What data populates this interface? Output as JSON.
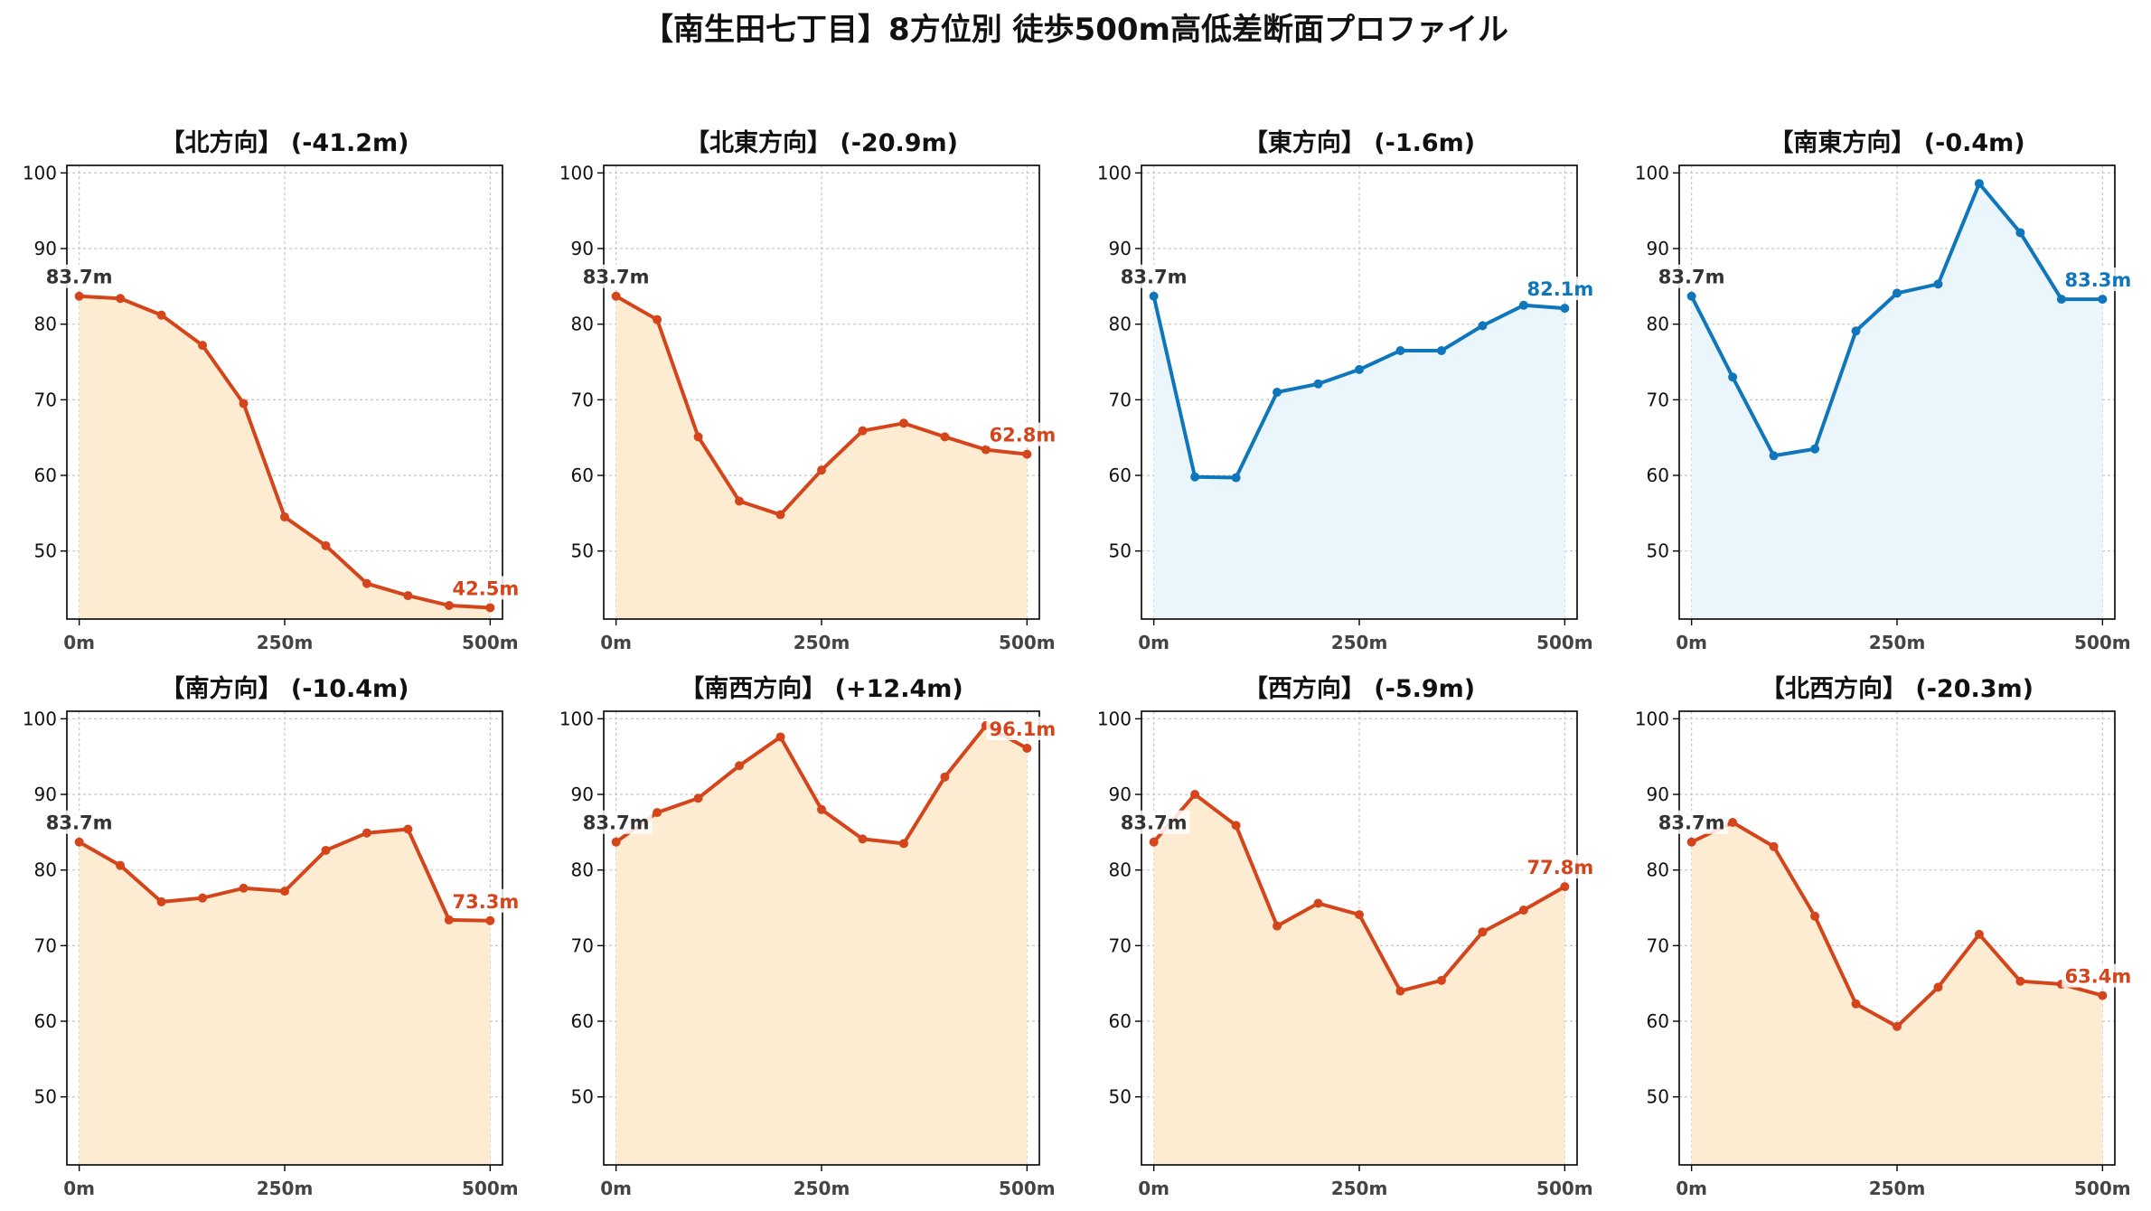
{
  "figure_title": "【南生田七丁目】8方位別 徒歩500m高低差断面プロファイル",
  "colors": {
    "down_line": "#d4451b",
    "down_fill": "#fdebd2",
    "up_line": "#0f76bb",
    "up_fill": "#eaf6fc",
    "start_label": "#333333",
    "grid": "#c8c8c8"
  },
  "chart_data": [
    {
      "type": "area",
      "title": "【北方向】 (-41.2m)",
      "trend": "down",
      "x": [
        0,
        50,
        100,
        150,
        200,
        250,
        300,
        350,
        400,
        450,
        500
      ],
      "y": [
        83.7,
        83.4,
        81.2,
        77.2,
        69.5,
        54.5,
        50.7,
        45.7,
        44.1,
        42.8,
        42.5
      ],
      "start_label": "83.7m",
      "end_label": "42.5m",
      "xticks": [
        "0m",
        "250m",
        "500m"
      ],
      "yticks": [
        50,
        60,
        70,
        80,
        90,
        100
      ],
      "ylim": [
        41,
        101
      ],
      "xlim": [
        -15,
        515
      ],
      "grid": true
    },
    {
      "type": "area",
      "title": "【北東方向】 (-20.9m)",
      "trend": "down",
      "x": [
        0,
        50,
        100,
        150,
        200,
        250,
        300,
        350,
        400,
        450,
        500
      ],
      "y": [
        83.7,
        80.6,
        65.1,
        56.6,
        54.8,
        60.7,
        65.9,
        66.9,
        65.1,
        63.4,
        62.8
      ],
      "start_label": "83.7m",
      "end_label": "62.8m",
      "xticks": [
        "0m",
        "250m",
        "500m"
      ],
      "yticks": [
        50,
        60,
        70,
        80,
        90,
        100
      ],
      "ylim": [
        41,
        101
      ],
      "xlim": [
        -15,
        515
      ],
      "grid": true
    },
    {
      "type": "area",
      "title": "【東方向】 (-1.6m)",
      "trend": "up",
      "x": [
        0,
        50,
        100,
        150,
        200,
        250,
        300,
        350,
        400,
        450,
        500
      ],
      "y": [
        83.7,
        59.8,
        59.7,
        71.0,
        72.1,
        74.0,
        76.5,
        76.5,
        79.8,
        82.5,
        82.1
      ],
      "start_label": "83.7m",
      "end_label": "82.1m",
      "xticks": [
        "0m",
        "250m",
        "500m"
      ],
      "yticks": [
        50,
        60,
        70,
        80,
        90,
        100
      ],
      "ylim": [
        41,
        101
      ],
      "xlim": [
        -15,
        515
      ],
      "grid": true
    },
    {
      "type": "area",
      "title": "【南東方向】 (-0.4m)",
      "trend": "up",
      "x": [
        0,
        50,
        100,
        150,
        200,
        250,
        300,
        350,
        400,
        450,
        500
      ],
      "y": [
        83.7,
        73.0,
        62.6,
        63.5,
        79.1,
        84.1,
        85.3,
        98.6,
        92.1,
        83.3,
        83.3
      ],
      "start_label": "83.7m",
      "end_label": "83.3m",
      "xticks": [
        "0m",
        "250m",
        "500m"
      ],
      "yticks": [
        50,
        60,
        70,
        80,
        90,
        100
      ],
      "ylim": [
        41,
        101
      ],
      "xlim": [
        -15,
        515
      ],
      "grid": true
    },
    {
      "type": "area",
      "title": "【南方向】 (-10.4m)",
      "trend": "down",
      "x": [
        0,
        50,
        100,
        150,
        200,
        250,
        300,
        350,
        400,
        450,
        500
      ],
      "y": [
        83.7,
        80.6,
        75.8,
        76.3,
        77.6,
        77.2,
        82.6,
        84.9,
        85.4,
        73.4,
        73.3
      ],
      "start_label": "83.7m",
      "end_label": "73.3m",
      "xticks": [
        "0m",
        "250m",
        "500m"
      ],
      "yticks": [
        50,
        60,
        70,
        80,
        90,
        100
      ],
      "ylim": [
        41,
        101
      ],
      "xlim": [
        -15,
        515
      ],
      "grid": true
    },
    {
      "type": "area",
      "title": "【南西方向】 (+12.4m)",
      "trend": "down",
      "x": [
        0,
        50,
        100,
        150,
        200,
        250,
        300,
        350,
        400,
        450,
        500
      ],
      "y": [
        83.7,
        87.6,
        89.5,
        93.8,
        97.6,
        88.0,
        84.1,
        83.5,
        92.3,
        99.1,
        96.1
      ],
      "start_label": "83.7m",
      "end_label": "96.1m",
      "xticks": [
        "0m",
        "250m",
        "500m"
      ],
      "yticks": [
        50,
        60,
        70,
        80,
        90,
        100
      ],
      "ylim": [
        41,
        101
      ],
      "xlim": [
        -15,
        515
      ],
      "grid": true
    },
    {
      "type": "area",
      "title": "【西方向】 (-5.9m)",
      "trend": "down",
      "x": [
        0,
        50,
        100,
        150,
        200,
        250,
        300,
        350,
        400,
        450,
        500
      ],
      "y": [
        83.7,
        90.0,
        85.9,
        72.6,
        75.6,
        74.1,
        64.0,
        65.4,
        71.8,
        74.7,
        77.8
      ],
      "start_label": "83.7m",
      "end_label": "77.8m",
      "xticks": [
        "0m",
        "250m",
        "500m"
      ],
      "yticks": [
        50,
        60,
        70,
        80,
        90,
        100
      ],
      "ylim": [
        41,
        101
      ],
      "xlim": [
        -15,
        515
      ],
      "grid": true
    },
    {
      "type": "area",
      "title": "【北西方向】 (-20.3m)",
      "trend": "down",
      "x": [
        0,
        50,
        100,
        150,
        200,
        250,
        300,
        350,
        400,
        450,
        500
      ],
      "y": [
        83.7,
        86.3,
        83.1,
        73.9,
        62.3,
        59.3,
        64.5,
        71.5,
        65.3,
        64.9,
        63.4
      ],
      "start_label": "83.7m",
      "end_label": "63.4m",
      "xticks": [
        "0m",
        "250m",
        "500m"
      ],
      "yticks": [
        50,
        60,
        70,
        80,
        90,
        100
      ],
      "ylim": [
        41,
        101
      ],
      "xlim": [
        -15,
        515
      ],
      "grid": true
    }
  ]
}
